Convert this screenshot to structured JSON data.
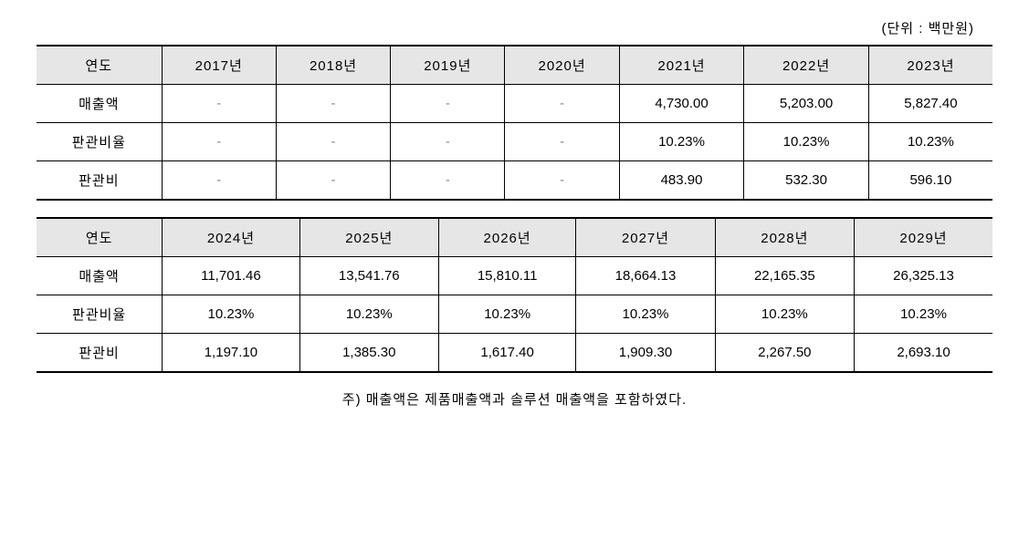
{
  "unit_label": "(단위 : 백만원)",
  "table1": {
    "headers": [
      "연도",
      "2017년",
      "2018년",
      "2019년",
      "2020년",
      "2021년",
      "2022년",
      "2023년"
    ],
    "rows": [
      {
        "label": "매출액",
        "values": [
          "-",
          "-",
          "-",
          "-",
          "4,730.00",
          "5,203.00",
          "5,827.40"
        ]
      },
      {
        "label": "판관비율",
        "values": [
          "-",
          "-",
          "-",
          "-",
          "10.23%",
          "10.23%",
          "10.23%"
        ]
      },
      {
        "label": "판관비",
        "values": [
          "-",
          "-",
          "-",
          "-",
          "483.90",
          "532.30",
          "596.10"
        ]
      }
    ]
  },
  "table2": {
    "headers": [
      "연도",
      "2024년",
      "2025년",
      "2026년",
      "2027년",
      "2028년",
      "2029년"
    ],
    "rows": [
      {
        "label": "매출액",
        "values": [
          "11,701.46",
          "13,541.76",
          "15,810.11",
          "18,664.13",
          "22,165.35",
          "26,325.13"
        ]
      },
      {
        "label": "판관비율",
        "values": [
          "10.23%",
          "10.23%",
          "10.23%",
          "10.23%",
          "10.23%",
          "10.23%"
        ]
      },
      {
        "label": "판관비",
        "values": [
          "1,197.10",
          "1,385.30",
          "1,617.40",
          "1,909.30",
          "2,267.50",
          "2,693.10"
        ]
      }
    ]
  },
  "footnote": "주) 매출액은 제품매출액과 솔루션 매출액을 포함하였다.",
  "styling": {
    "header_bg": "#e6e6e6",
    "border_color": "#000000",
    "dash_color": "#888888",
    "font_size": 15,
    "table1_col_count": 8,
    "table2_col_count": 7
  }
}
